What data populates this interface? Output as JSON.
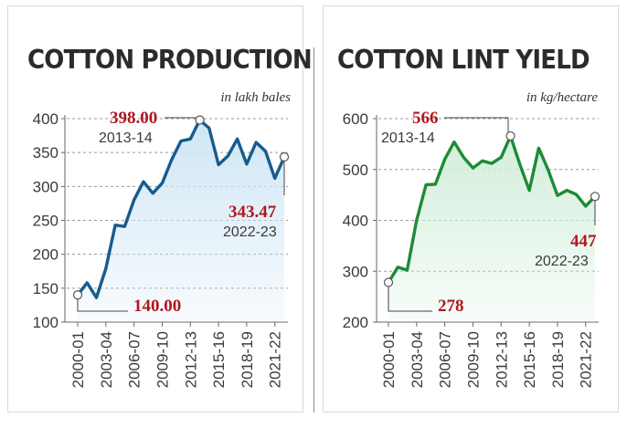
{
  "chart_data": [
    {
      "type": "area",
      "title": "COTTON PRODUCTION",
      "unit_label": "in lakh bales",
      "ylim": [
        100,
        400
      ],
      "yticks": [
        "100",
        "150",
        "200",
        "250",
        "300",
        "350",
        "400"
      ],
      "xtick_labels": [
        "2000-01",
        "2003-04",
        "2006-07",
        "2009-10",
        "2012-13",
        "2015-16",
        "2018-19",
        "2021-22"
      ],
      "x": [
        "2000-01",
        "2001-02",
        "2002-03",
        "2003-04",
        "2004-05",
        "2005-06",
        "2006-07",
        "2007-08",
        "2008-09",
        "2009-10",
        "2010-11",
        "2011-12",
        "2012-13",
        "2013-14",
        "2014-15",
        "2015-16",
        "2016-17",
        "2017-18",
        "2018-19",
        "2019-20",
        "2020-21",
        "2021-22",
        "2022-23"
      ],
      "values": [
        140,
        158,
        136,
        179,
        243,
        241,
        280,
        307,
        290,
        305,
        339,
        367,
        370,
        398,
        386,
        332,
        345,
        370,
        333,
        365,
        352,
        312,
        343.47
      ],
      "grid": true,
      "color": "#165b8f",
      "fill_color": "#cfe6f5",
      "annotations": [
        {
          "value": "398.00",
          "year": "2013-14"
        },
        {
          "value": "140.00"
        },
        {
          "value": "343.47",
          "year": "2022-23"
        }
      ]
    },
    {
      "type": "area",
      "title": "COTTON LINT YIELD",
      "unit_label": "in kg/hectare",
      "ylim": [
        200,
        600
      ],
      "yticks": [
        "200",
        "300",
        "400",
        "500",
        "600"
      ],
      "xtick_labels": [
        "2000-01",
        "2003-04",
        "2006-07",
        "2009-10",
        "2012-13",
        "2015-16",
        "2018-19",
        "2021-22"
      ],
      "x": [
        "2000-01",
        "2001-02",
        "2002-03",
        "2003-04",
        "2004-05",
        "2005-06",
        "2006-07",
        "2007-08",
        "2008-09",
        "2009-10",
        "2010-11",
        "2011-12",
        "2012-13",
        "2013-14",
        "2014-15",
        "2015-16",
        "2016-17",
        "2017-18",
        "2018-19",
        "2019-20",
        "2020-21",
        "2021-22",
        "2022-23"
      ],
      "values": [
        278,
        308,
        302,
        400,
        470,
        471,
        520,
        554,
        524,
        503,
        517,
        512,
        524,
        566,
        510,
        459,
        542,
        500,
        449,
        459,
        451,
        428,
        447
      ],
      "grid": true,
      "color": "#1f8a36",
      "fill_color": "#d2eedb",
      "annotations": [
        {
          "value": "566",
          "year": "2013-14"
        },
        {
          "value": "278"
        },
        {
          "value": "447",
          "year": "2022-23"
        }
      ]
    }
  ]
}
